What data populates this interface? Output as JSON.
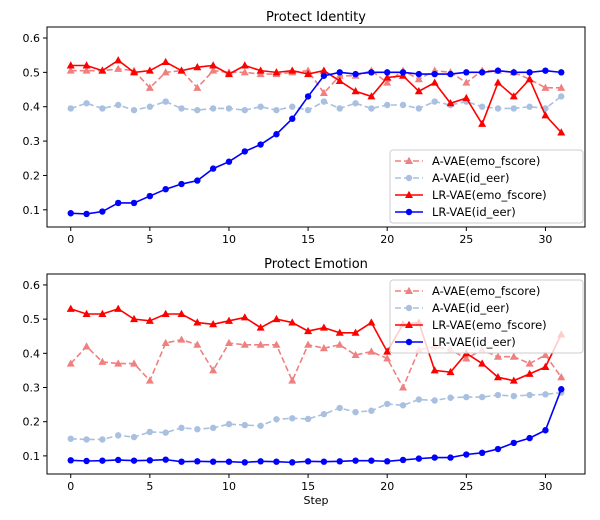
{
  "chart_data": [
    {
      "type": "line",
      "title": "Protect Identity",
      "xlabel": "",
      "ylabel": "",
      "xlim": [
        -1.5,
        32.5
      ],
      "ylim": [
        0.05,
        0.632
      ],
      "xticks": [
        0,
        5,
        10,
        15,
        20,
        25,
        30
      ],
      "yticks": [
        0.1,
        0.2,
        0.3,
        0.4,
        0.5,
        0.6
      ],
      "grid": false,
      "legend": "lower-right",
      "x": [
        0,
        1,
        2,
        3,
        4,
        5,
        6,
        7,
        8,
        9,
        10,
        11,
        12,
        13,
        14,
        15,
        16,
        17,
        18,
        19,
        20,
        21,
        22,
        23,
        24,
        25,
        26,
        27,
        28,
        29,
        30,
        31
      ],
      "series": [
        {
          "name": "A-VAE(emo_fscore)",
          "color": "#f08080",
          "style": "dashed",
          "marker": "triangle",
          "values": [
            0.505,
            0.505,
            0.505,
            0.51,
            0.505,
            0.455,
            0.5,
            0.505,
            0.455,
            0.505,
            0.5,
            0.5,
            0.495,
            0.495,
            0.5,
            0.505,
            0.44,
            0.49,
            0.49,
            0.505,
            0.47,
            0.505,
            0.48,
            0.505,
            0.5,
            0.47,
            0.505,
            0.505,
            0.5,
            0.48,
            0.455,
            0.455
          ]
        },
        {
          "name": "A-VAE(id_eer)",
          "color": "#a9c0e0",
          "style": "dashed",
          "marker": "circle",
          "values": [
            0.395,
            0.41,
            0.395,
            0.405,
            0.39,
            0.4,
            0.415,
            0.395,
            0.39,
            0.395,
            0.395,
            0.39,
            0.4,
            0.39,
            0.4,
            0.39,
            0.415,
            0.395,
            0.41,
            0.395,
            0.405,
            0.405,
            0.395,
            0.415,
            0.405,
            0.415,
            0.4,
            0.395,
            0.395,
            0.4,
            0.395,
            0.43
          ]
        },
        {
          "name": "LR-VAE(emo_fscore)",
          "color": "#ff0000",
          "style": "solid",
          "marker": "triangle",
          "values": [
            0.52,
            0.52,
            0.505,
            0.535,
            0.5,
            0.505,
            0.53,
            0.505,
            0.515,
            0.52,
            0.495,
            0.52,
            0.505,
            0.5,
            0.505,
            0.495,
            0.505,
            0.475,
            0.445,
            0.43,
            0.485,
            0.49,
            0.445,
            0.47,
            0.41,
            0.425,
            0.35,
            0.47,
            0.43,
            0.48,
            0.375,
            0.325
          ]
        },
        {
          "name": "LR-VAE(id_eer)",
          "color": "#0000ff",
          "style": "solid",
          "marker": "circle",
          "values": [
            0.09,
            0.088,
            0.095,
            0.12,
            0.12,
            0.14,
            0.16,
            0.175,
            0.185,
            0.22,
            0.24,
            0.27,
            0.29,
            0.32,
            0.365,
            0.43,
            0.49,
            0.5,
            0.495,
            0.5,
            0.5,
            0.5,
            0.495,
            0.495,
            0.495,
            0.5,
            0.5,
            0.505,
            0.5,
            0.5,
            0.505,
            0.5
          ]
        }
      ]
    },
    {
      "type": "line",
      "title": "Protect Emotion",
      "xlabel": "Step",
      "ylabel": "",
      "xlim": [
        -1.5,
        32.5
      ],
      "ylim": [
        0.047,
        0.632
      ],
      "xticks": [
        0,
        5,
        10,
        15,
        20,
        25,
        30
      ],
      "yticks": [
        0.1,
        0.2,
        0.3,
        0.4,
        0.5,
        0.6
      ],
      "grid": false,
      "legend": "upper-right",
      "x": [
        0,
        1,
        2,
        3,
        4,
        5,
        6,
        7,
        8,
        9,
        10,
        11,
        12,
        13,
        14,
        15,
        16,
        17,
        18,
        19,
        20,
        21,
        22,
        23,
        24,
        25,
        26,
        27,
        28,
        29,
        30,
        31
      ],
      "series": [
        {
          "name": "A-VAE(emo_fscore)",
          "color": "#f08080",
          "style": "dashed",
          "marker": "triangle",
          "values": [
            0.37,
            0.42,
            0.375,
            0.37,
            0.37,
            0.32,
            0.43,
            0.44,
            0.425,
            0.35,
            0.43,
            0.425,
            0.425,
            0.425,
            0.32,
            0.425,
            0.415,
            0.425,
            0.395,
            0.405,
            0.385,
            0.3,
            0.41,
            0.42,
            0.41,
            0.385,
            0.41,
            0.39,
            0.39,
            0.37,
            0.395,
            0.33
          ]
        },
        {
          "name": "A-VAE(id_eer)",
          "color": "#a9c0e0",
          "style": "dashed",
          "marker": "circle",
          "values": [
            0.15,
            0.148,
            0.148,
            0.16,
            0.155,
            0.17,
            0.168,
            0.182,
            0.178,
            0.182,
            0.193,
            0.19,
            0.188,
            0.207,
            0.21,
            0.208,
            0.222,
            0.24,
            0.228,
            0.232,
            0.252,
            0.248,
            0.265,
            0.262,
            0.27,
            0.272,
            0.272,
            0.278,
            0.275,
            0.278,
            0.28,
            0.285
          ]
        },
        {
          "name": "LR-VAE(emo_fscore)",
          "color": "#ff0000",
          "style": "solid",
          "marker": "triangle",
          "values": [
            0.53,
            0.515,
            0.515,
            0.53,
            0.5,
            0.495,
            0.515,
            0.515,
            0.49,
            0.485,
            0.495,
            0.505,
            0.475,
            0.5,
            0.49,
            0.465,
            0.475,
            0.46,
            0.46,
            0.49,
            0.405,
            0.485,
            0.49,
            0.35,
            0.345,
            0.4,
            0.37,
            0.33,
            0.32,
            0.34,
            0.36,
            0.455
          ]
        },
        {
          "name": "LR-VAE(id_eer)",
          "color": "#0000ff",
          "style": "solid",
          "marker": "circle",
          "values": [
            0.087,
            0.085,
            0.086,
            0.088,
            0.086,
            0.087,
            0.089,
            0.083,
            0.084,
            0.083,
            0.083,
            0.081,
            0.084,
            0.083,
            0.081,
            0.084,
            0.083,
            0.084,
            0.086,
            0.086,
            0.084,
            0.088,
            0.092,
            0.095,
            0.095,
            0.104,
            0.109,
            0.12,
            0.138,
            0.152,
            0.175,
            0.295
          ]
        }
      ]
    }
  ]
}
